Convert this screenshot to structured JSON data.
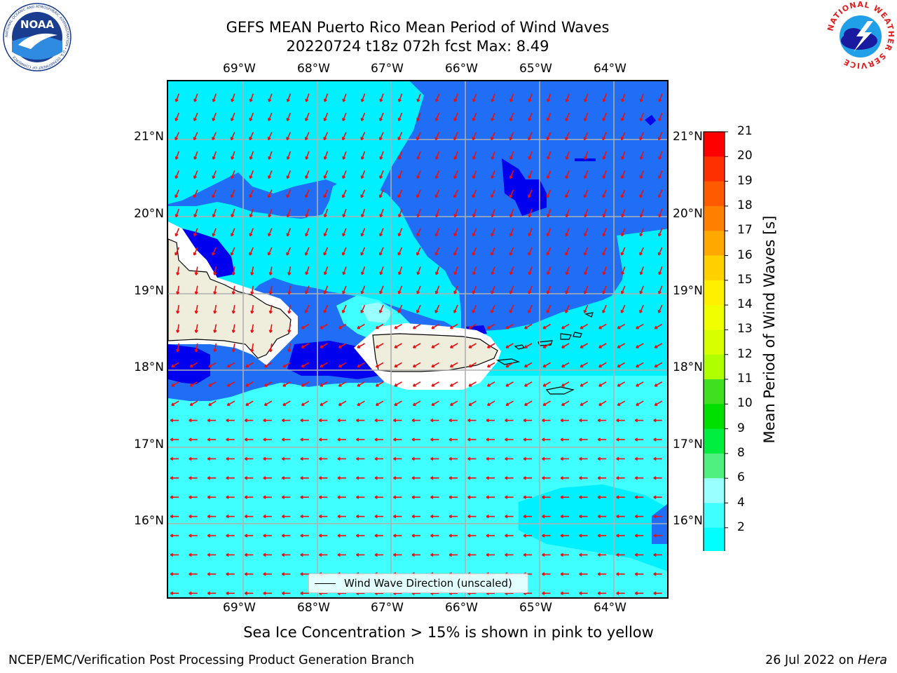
{
  "title": {
    "line1": "GEFS MEAN Puerto Rico Mean Period of Wind Waves",
    "line2": "20220724 t18z 072h fcst   Max: 8.49"
  },
  "logos": {
    "left": "NOAA",
    "left_ring": "NATIONAL OCEANIC AND ATMOSPHERIC ADMINISTRATION • U.S. DEPARTMENT OF COMMERCE",
    "right_ring": "NATIONAL WEATHER SERVICE"
  },
  "map": {
    "lon_labels": [
      "69°W",
      "68°W",
      "67°W",
      "66°W",
      "65°W",
      "64°W"
    ],
    "lat_labels": [
      "21°N",
      "20°N",
      "19°N",
      "18°N",
      "17°N",
      "16°N"
    ],
    "legend_label": "Wind Wave Direction (unscaled)",
    "ocean_colors": {
      "deep": "#0000ee",
      "mid": "#1f6ef5",
      "cyan": "#00f0ff",
      "light": "#40ffff",
      "pale": "#99ffff",
      "land": "#efeedd"
    }
  },
  "colorbar": {
    "title": "Mean Period of Wind Waves [s]",
    "ticks": [
      "21",
      "20",
      "19",
      "18",
      "17",
      "16",
      "15",
      "14",
      "13",
      "12",
      "11",
      "10",
      "9",
      "8",
      "6",
      "4",
      "2"
    ],
    "colors": [
      "#ff0000",
      "#ff3000",
      "#ff5a00",
      "#ff8000",
      "#ffa800",
      "#ffd000",
      "#fff000",
      "#f0ff00",
      "#d8ff00",
      "#b0ff00",
      "#40e020",
      "#00e000",
      "#00ee40",
      "#50f080",
      "#99ffff",
      "#40ffff",
      "#00ffff",
      "#1f6ef5",
      "#0000ee"
    ]
  },
  "footer": {
    "note": "Sea Ice Concentration > 15% is shown in pink to yellow",
    "left": "NCEP/EMC/Verification Post Processing Product Generation Branch",
    "right_prefix": "26 Jul 2022 on ",
    "right_host": "Hera"
  }
}
